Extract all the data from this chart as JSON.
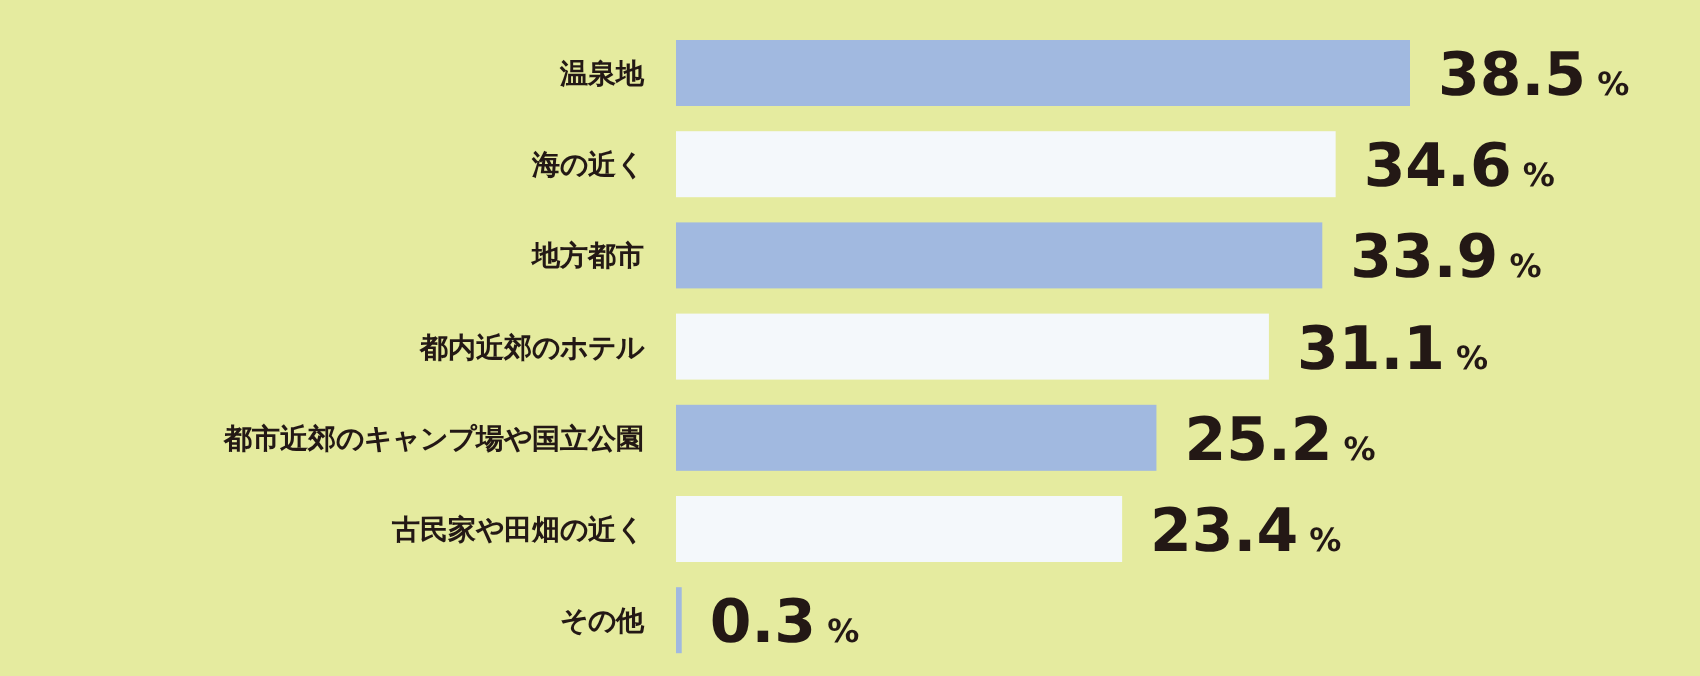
{
  "chart_data": {
    "type": "bar",
    "orientation": "horizontal",
    "categories": [
      "温泉地",
      "海の近く",
      "地方都市",
      "都内近郊のホテル",
      "都市近郊のキャンプ場や国立公園",
      "古民家や田畑の近く",
      "その他"
    ],
    "values": [
      38.5,
      34.6,
      33.9,
      31.1,
      25.2,
      23.4,
      0.3
    ],
    "colors": [
      "#a1b9e0",
      "#f4f8fb",
      "#a1b9e0",
      "#f4f8fb",
      "#a1b9e0",
      "#f4f8fb",
      "#a1b9e0"
    ],
    "value_labels": [
      "38.5 %",
      "34.6 %",
      "33.9 %",
      "31.1 %",
      "25.2 %",
      "23.4 %",
      "0.3 %"
    ]
  }
}
